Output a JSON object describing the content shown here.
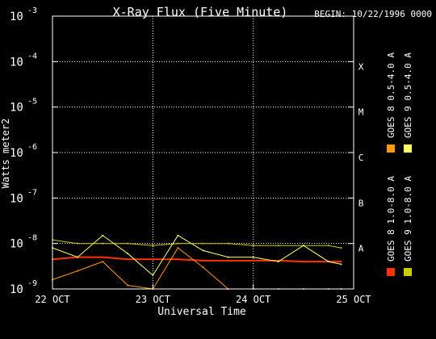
{
  "chart_data": {
    "type": "line",
    "title": "X-Ray Flux (Five Minute)",
    "begin_label": "BEGIN: 10/22/1996 0000",
    "xlabel": "Universal Time",
    "ylabel": "Watts meter2",
    "y_scale": "log",
    "ylim": [
      1e-09,
      0.001
    ],
    "y_ticks": [
      {
        "value": 1e-09,
        "base": "10",
        "exp": "-9"
      },
      {
        "value": 1e-08,
        "base": "10",
        "exp": "-8"
      },
      {
        "value": 1e-07,
        "base": "10",
        "exp": "-7"
      },
      {
        "value": 1e-06,
        "base": "10",
        "exp": "-6"
      },
      {
        "value": 1e-05,
        "base": "10",
        "exp": "-5"
      },
      {
        "value": 0.0001,
        "base": "10",
        "exp": "-4"
      },
      {
        "value": 0.001,
        "base": "10",
        "exp": "-3"
      }
    ],
    "xlim": [
      "1996-10-22T00:00",
      "1996-10-25T00:00"
    ],
    "x_ticks": [
      {
        "value": "1996-10-22T00:00",
        "label": "22 OCT"
      },
      {
        "value": "1996-10-23T00:00",
        "label": "23 OCT"
      },
      {
        "value": "1996-10-24T00:00",
        "label": "24 OCT"
      },
      {
        "value": "1996-10-25T00:00",
        "label": "25 OCT"
      }
    ],
    "flare_classes": [
      {
        "label": "X",
        "value": 0.0001
      },
      {
        "label": "M",
        "value": 1e-05
      },
      {
        "label": "C",
        "value": 1e-06
      },
      {
        "label": "B",
        "value": 1e-07
      },
      {
        "label": "A",
        "value": 1e-08
      }
    ],
    "grid": true,
    "legend_position": "right",
    "series": [
      {
        "name": "GOES 8 1.0-8.0 A",
        "color": "#ff3300",
        "x": [
          "1996-10-22T00:00",
          "1996-10-22T06:00",
          "1996-10-22T12:00",
          "1996-10-22T18:00",
          "1996-10-23T00:00",
          "1996-10-23T06:00",
          "1996-10-23T12:00",
          "1996-10-23T18:00",
          "1996-10-24T00:00",
          "1996-10-24T06:00",
          "1996-10-24T12:00",
          "1996-10-24T18:00",
          "1996-10-24T21:00"
        ],
        "values": [
          4.5e-09,
          5e-09,
          5e-09,
          4.5e-09,
          4.5e-09,
          4.5e-09,
          4.2e-09,
          4.2e-09,
          4.2e-09,
          4.2e-09,
          4e-09,
          4e-09,
          4e-09
        ]
      },
      {
        "name": "GOES 8 0.5-4.0 A",
        "color": "#ff9900",
        "x": [
          "1996-10-22T00:00",
          "1996-10-22T06:00",
          "1996-10-22T12:00",
          "1996-10-22T18:00",
          "1996-10-23T00:00",
          "1996-10-23T06:00",
          "1996-10-23T12:00",
          "1996-10-23T18:00",
          "1996-10-24T00:00",
          "1996-10-24T06:00",
          "1996-10-24T12:00",
          "1996-10-24T18:00",
          "1996-10-24T21:00"
        ],
        "values": [
          1.6e-09,
          2.5e-09,
          4e-09,
          1.2e-09,
          1e-09,
          8e-09,
          3e-09,
          1e-09,
          1e-09,
          1e-09,
          1e-09,
          1e-09,
          1e-09
        ]
      },
      {
        "name": "GOES 9 1.0-8.0 A",
        "color": "#cccc00",
        "x": [
          "1996-10-22T00:00",
          "1996-10-22T06:00",
          "1996-10-22T12:00",
          "1996-10-22T18:00",
          "1996-10-23T00:00",
          "1996-10-23T06:00",
          "1996-10-23T12:00",
          "1996-10-23T18:00",
          "1996-10-24T00:00",
          "1996-10-24T06:00",
          "1996-10-24T12:00",
          "1996-10-24T18:00",
          "1996-10-24T21:00"
        ],
        "values": [
          1.2e-08,
          1e-08,
          1e-08,
          1e-08,
          9e-09,
          1e-08,
          1e-08,
          1e-08,
          9e-09,
          9e-09,
          9e-09,
          9e-09,
          8e-09
        ]
      },
      {
        "name": "GOES 9 0.5-4.0 A",
        "color": "#ffff66",
        "x": [
          "1996-10-22T00:00",
          "1996-10-22T06:00",
          "1996-10-22T12:00",
          "1996-10-22T18:00",
          "1996-10-23T00:00",
          "1996-10-23T06:00",
          "1996-10-23T12:00",
          "1996-10-23T18:00",
          "1996-10-24T00:00",
          "1996-10-24T06:00",
          "1996-10-24T12:00",
          "1996-10-24T18:00",
          "1996-10-24T21:00"
        ],
        "values": [
          8e-09,
          5e-09,
          1.5e-08,
          6e-09,
          2e-09,
          1.5e-08,
          7e-09,
          5e-09,
          5e-09,
          4e-09,
          9e-09,
          4e-09,
          3.5e-09
        ]
      }
    ]
  }
}
